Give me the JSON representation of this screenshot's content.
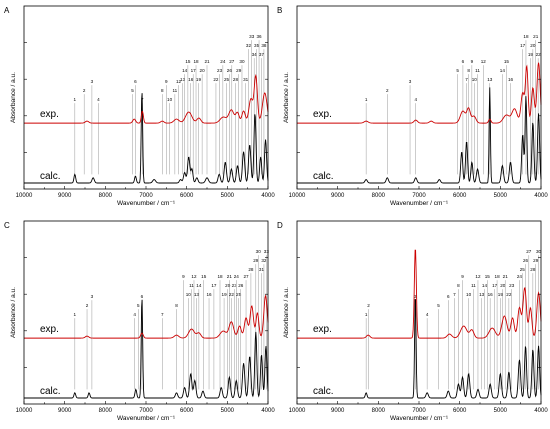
{
  "chart_data": [
    {
      "type": "line",
      "panel": "A",
      "xlabel": "Wavenumber / cm⁻¹",
      "ylabel": "Absorbance / a.u.",
      "xlim": [
        10000,
        4000
      ],
      "x_ticks": [
        "10000",
        "9000",
        "8000",
        "7000",
        "6000",
        "5000",
        "4000"
      ],
      "series": [
        {
          "name": "exp."
        },
        {
          "name": "calc."
        }
      ],
      "modes": [
        {
          "label": "1",
          "x": 8750
        },
        {
          "label": "2",
          "x": 8520
        },
        {
          "label": "3",
          "x": 8330
        },
        {
          "label": "4",
          "x": 8170
        },
        {
          "label": "5",
          "x": 7330
        },
        {
          "label": "6",
          "x": 7260
        },
        {
          "label": "7",
          "x": 7090
        },
        {
          "label": "8",
          "x": 6600
        },
        {
          "label": "9",
          "x": 6500
        },
        {
          "label": "10",
          "x": 6420
        },
        {
          "label": "11",
          "x": 6290
        },
        {
          "label": "12",
          "x": 6200
        },
        {
          "label": "13",
          "x": 6100
        },
        {
          "label": "14",
          "x": 6050
        },
        {
          "label": "15",
          "x": 5970
        },
        {
          "label": "16",
          "x": 5900
        },
        {
          "label": "17",
          "x": 5840
        },
        {
          "label": "18",
          "x": 5770
        },
        {
          "label": "19",
          "x": 5710
        },
        {
          "label": "20",
          "x": 5620
        },
        {
          "label": "21",
          "x": 5500
        },
        {
          "label": "22",
          "x": 5280
        },
        {
          "label": "23",
          "x": 5190
        },
        {
          "label": "24",
          "x": 5110
        },
        {
          "label": "25",
          "x": 5020
        },
        {
          "label": "26",
          "x": 4950
        },
        {
          "label": "27",
          "x": 4890
        },
        {
          "label": "28",
          "x": 4800
        },
        {
          "label": "29",
          "x": 4720
        },
        {
          "label": "30",
          "x": 4640
        },
        {
          "label": "31",
          "x": 4550
        },
        {
          "label": "32",
          "x": 4480
        },
        {
          "label": "33",
          "x": 4400
        },
        {
          "label": "34",
          "x": 4340
        },
        {
          "label": "35",
          "x": 4280
        },
        {
          "label": "36",
          "x": 4220
        },
        {
          "label": "37",
          "x": 4160
        },
        {
          "label": "38",
          "x": 4100
        }
      ],
      "exp_peaks": [
        {
          "x": 8450,
          "h": 0.02,
          "w": 60
        },
        {
          "x": 7290,
          "h": 0.04,
          "w": 50
        },
        {
          "x": 7090,
          "h": 0.12,
          "w": 35
        },
        {
          "x": 6600,
          "h": 0.02,
          "w": 60
        },
        {
          "x": 6250,
          "h": 0.04,
          "w": 90
        },
        {
          "x": 5950,
          "h": 0.11,
          "w": 110
        },
        {
          "x": 5700,
          "h": 0.05,
          "w": 70
        },
        {
          "x": 5100,
          "h": 0.06,
          "w": 110
        },
        {
          "x": 4900,
          "h": 0.13,
          "w": 90
        },
        {
          "x": 4750,
          "h": 0.1,
          "w": 60
        },
        {
          "x": 4600,
          "h": 0.12,
          "w": 60
        },
        {
          "x": 4420,
          "h": 0.24,
          "w": 70
        },
        {
          "x": 4300,
          "h": 0.46,
          "w": 55
        },
        {
          "x": 4080,
          "h": 0.3,
          "w": 80
        }
      ],
      "calc_peaks": [
        {
          "x": 8750,
          "h": 0.05,
          "w": 30
        },
        {
          "x": 8300,
          "h": 0.03,
          "w": 40
        },
        {
          "x": 7260,
          "h": 0.04,
          "w": 30
        },
        {
          "x": 7100,
          "h": 0.53,
          "w": 25
        },
        {
          "x": 6800,
          "h": 0.02,
          "w": 50
        },
        {
          "x": 6150,
          "h": 0.02,
          "w": 40
        },
        {
          "x": 6050,
          "h": 0.06,
          "w": 40
        },
        {
          "x": 5950,
          "h": 0.15,
          "w": 40
        },
        {
          "x": 5870,
          "h": 0.08,
          "w": 35
        },
        {
          "x": 5750,
          "h": 0.03,
          "w": 40
        },
        {
          "x": 5500,
          "h": 0.03,
          "w": 50
        },
        {
          "x": 5200,
          "h": 0.05,
          "w": 40
        },
        {
          "x": 5050,
          "h": 0.12,
          "w": 40
        },
        {
          "x": 4900,
          "h": 0.08,
          "w": 40
        },
        {
          "x": 4750,
          "h": 0.1,
          "w": 40
        },
        {
          "x": 4600,
          "h": 0.18,
          "w": 40
        },
        {
          "x": 4450,
          "h": 0.22,
          "w": 40
        },
        {
          "x": 4320,
          "h": 0.4,
          "w": 35
        },
        {
          "x": 4180,
          "h": 0.15,
          "w": 35
        },
        {
          "x": 4060,
          "h": 0.25,
          "w": 35
        }
      ]
    },
    {
      "type": "line",
      "panel": "B",
      "xlabel": "Wavenumber / cm⁻¹",
      "ylabel": "Absorbance / a.u.",
      "xlim": [
        10000,
        4000
      ],
      "x_ticks": [
        "10000",
        "9000",
        "8000",
        "7000",
        "6000",
        "5000",
        "4000"
      ],
      "series": [
        {
          "name": "exp."
        },
        {
          "name": "calc."
        }
      ],
      "modes": [
        {
          "label": "1",
          "x": 8300
        },
        {
          "label": "2",
          "x": 7780
        },
        {
          "label": "3",
          "x": 7220
        },
        {
          "label": "4",
          "x": 7080
        },
        {
          "label": "5",
          "x": 6050
        },
        {
          "label": "6",
          "x": 5920
        },
        {
          "label": "7",
          "x": 5830
        },
        {
          "label": "8",
          "x": 5780
        },
        {
          "label": "9",
          "x": 5700
        },
        {
          "label": "10",
          "x": 5640
        },
        {
          "label": "11",
          "x": 5560
        },
        {
          "label": "12",
          "x": 5420
        },
        {
          "label": "13",
          "x": 5260
        },
        {
          "label": "14",
          "x": 4950
        },
        {
          "label": "15",
          "x": 4850
        },
        {
          "label": "16",
          "x": 4750
        },
        {
          "label": "17",
          "x": 4450
        },
        {
          "label": "18",
          "x": 4370
        },
        {
          "label": "19",
          "x": 4260
        },
        {
          "label": "20",
          "x": 4200
        },
        {
          "label": "21",
          "x": 4130
        },
        {
          "label": "22",
          "x": 4070
        }
      ],
      "exp_peaks": [
        {
          "x": 8300,
          "h": 0.02,
          "w": 70
        },
        {
          "x": 7080,
          "h": 0.03,
          "w": 60
        },
        {
          "x": 6700,
          "h": 0.02,
          "w": 60
        },
        {
          "x": 5920,
          "h": 0.12,
          "w": 90
        },
        {
          "x": 5780,
          "h": 0.14,
          "w": 60
        },
        {
          "x": 5650,
          "h": 0.07,
          "w": 70
        },
        {
          "x": 5260,
          "h": 0.04,
          "w": 40
        },
        {
          "x": 4850,
          "h": 0.08,
          "w": 110
        },
        {
          "x": 4650,
          "h": 0.14,
          "w": 90
        },
        {
          "x": 4450,
          "h": 0.3,
          "w": 60
        },
        {
          "x": 4350,
          "h": 0.55,
          "w": 45
        },
        {
          "x": 4200,
          "h": 0.35,
          "w": 50
        },
        {
          "x": 4060,
          "h": 0.6,
          "w": 55
        }
      ],
      "calc_peaks": [
        {
          "x": 8300,
          "h": 0.02,
          "w": 40
        },
        {
          "x": 7780,
          "h": 0.03,
          "w": 40
        },
        {
          "x": 7080,
          "h": 0.03,
          "w": 40
        },
        {
          "x": 6500,
          "h": 0.02,
          "w": 40
        },
        {
          "x": 5950,
          "h": 0.18,
          "w": 35
        },
        {
          "x": 5830,
          "h": 0.24,
          "w": 35
        },
        {
          "x": 5700,
          "h": 0.12,
          "w": 35
        },
        {
          "x": 5560,
          "h": 0.08,
          "w": 40
        },
        {
          "x": 5260,
          "h": 0.55,
          "w": 22
        },
        {
          "x": 4950,
          "h": 0.1,
          "w": 40
        },
        {
          "x": 4750,
          "h": 0.12,
          "w": 40
        },
        {
          "x": 4450,
          "h": 0.28,
          "w": 35
        },
        {
          "x": 4370,
          "h": 0.5,
          "w": 30
        },
        {
          "x": 4200,
          "h": 0.35,
          "w": 35
        },
        {
          "x": 4060,
          "h": 0.4,
          "w": 35
        }
      ]
    },
    {
      "type": "line",
      "panel": "C",
      "xlabel": "Wavenumber / cm⁻¹",
      "ylabel": "Absorbance / a.u.",
      "xlim": [
        10000,
        4000
      ],
      "x_ticks": [
        "10000",
        "9000",
        "8000",
        "7000",
        "6000",
        "5000",
        "4000"
      ],
      "series": [
        {
          "name": "exp."
        },
        {
          "name": "calc."
        }
      ],
      "modes": [
        {
          "label": "1",
          "x": 8750
        },
        {
          "label": "2",
          "x": 8450
        },
        {
          "label": "3",
          "x": 8330
        },
        {
          "label": "4",
          "x": 7280
        },
        {
          "label": "5",
          "x": 7190
        },
        {
          "label": "6",
          "x": 7100
        },
        {
          "label": "7",
          "x": 6600
        },
        {
          "label": "8",
          "x": 6250
        },
        {
          "label": "9",
          "x": 6080
        },
        {
          "label": "10",
          "x": 5960
        },
        {
          "label": "11",
          "x": 5880
        },
        {
          "label": "12",
          "x": 5820
        },
        {
          "label": "13",
          "x": 5760
        },
        {
          "label": "14",
          "x": 5700
        },
        {
          "label": "15",
          "x": 5580
        },
        {
          "label": "16",
          "x": 5450
        },
        {
          "label": "17",
          "x": 5330
        },
        {
          "label": "18",
          "x": 5180
        },
        {
          "label": "19",
          "x": 5080
        },
        {
          "label": "20",
          "x": 4990
        },
        {
          "label": "21",
          "x": 4950
        },
        {
          "label": "22",
          "x": 4900
        },
        {
          "label": "23",
          "x": 4830
        },
        {
          "label": "24",
          "x": 4780
        },
        {
          "label": "25",
          "x": 4720
        },
        {
          "label": "26",
          "x": 4670
        },
        {
          "label": "27",
          "x": 4540
        },
        {
          "label": "28",
          "x": 4420
        },
        {
          "label": "29",
          "x": 4300
        },
        {
          "label": "30",
          "x": 4240
        },
        {
          "label": "31",
          "x": 4160
        },
        {
          "label": "32",
          "x": 4100
        },
        {
          "label": "33",
          "x": 4040
        }
      ],
      "exp_peaks": [
        {
          "x": 8450,
          "h": 0.02,
          "w": 60
        },
        {
          "x": 7100,
          "h": 0.05,
          "w": 45
        },
        {
          "x": 6250,
          "h": 0.03,
          "w": 80
        },
        {
          "x": 5880,
          "h": 0.09,
          "w": 100
        },
        {
          "x": 5700,
          "h": 0.05,
          "w": 70
        },
        {
          "x": 5100,
          "h": 0.07,
          "w": 110
        },
        {
          "x": 4900,
          "h": 0.16,
          "w": 80
        },
        {
          "x": 4700,
          "h": 0.12,
          "w": 60
        },
        {
          "x": 4540,
          "h": 0.2,
          "w": 60
        },
        {
          "x": 4400,
          "h": 0.32,
          "w": 60
        },
        {
          "x": 4260,
          "h": 0.25,
          "w": 50
        },
        {
          "x": 4060,
          "h": 0.42,
          "w": 60
        }
      ],
      "calc_peaks": [
        {
          "x": 8750,
          "h": 0.03,
          "w": 30
        },
        {
          "x": 8400,
          "h": 0.03,
          "w": 30
        },
        {
          "x": 7250,
          "h": 0.05,
          "w": 30
        },
        {
          "x": 7100,
          "h": 0.58,
          "w": 25
        },
        {
          "x": 6250,
          "h": 0.03,
          "w": 40
        },
        {
          "x": 6050,
          "h": 0.06,
          "w": 40
        },
        {
          "x": 5900,
          "h": 0.14,
          "w": 40
        },
        {
          "x": 5800,
          "h": 0.1,
          "w": 40
        },
        {
          "x": 5600,
          "h": 0.04,
          "w": 40
        },
        {
          "x": 5150,
          "h": 0.06,
          "w": 40
        },
        {
          "x": 4950,
          "h": 0.12,
          "w": 40
        },
        {
          "x": 4780,
          "h": 0.1,
          "w": 40
        },
        {
          "x": 4600,
          "h": 0.2,
          "w": 40
        },
        {
          "x": 4450,
          "h": 0.24,
          "w": 40
        },
        {
          "x": 4300,
          "h": 0.38,
          "w": 35
        },
        {
          "x": 4160,
          "h": 0.25,
          "w": 35
        },
        {
          "x": 4050,
          "h": 0.3,
          "w": 35
        }
      ]
    },
    {
      "type": "line",
      "panel": "D",
      "xlabel": "Wavenumber / cm⁻¹",
      "ylabel": "Absorbance / a.u.",
      "xlim": [
        10000,
        4000
      ],
      "x_ticks": [
        "10000",
        "9000",
        "8000",
        "7000",
        "6000",
        "5000",
        "4000"
      ],
      "series": [
        {
          "name": "exp."
        },
        {
          "name": "calc."
        }
      ],
      "modes": [
        {
          "label": "1",
          "x": 8300
        },
        {
          "label": "2",
          "x": 8240
        },
        {
          "label": "3",
          "x": 7090
        },
        {
          "label": "4",
          "x": 6800
        },
        {
          "label": "5",
          "x": 6520
        },
        {
          "label": "6",
          "x": 6280
        },
        {
          "label": "7",
          "x": 6130
        },
        {
          "label": "8",
          "x": 6030
        },
        {
          "label": "9",
          "x": 5930
        },
        {
          "label": "10",
          "x": 5780
        },
        {
          "label": "11",
          "x": 5660
        },
        {
          "label": "12",
          "x": 5550
        },
        {
          "label": "13",
          "x": 5460
        },
        {
          "label": "14",
          "x": 5390
        },
        {
          "label": "15",
          "x": 5320
        },
        {
          "label": "16",
          "x": 5250
        },
        {
          "label": "17",
          "x": 5140
        },
        {
          "label": "18",
          "x": 5080
        },
        {
          "label": "19",
          "x": 5000
        },
        {
          "label": "20",
          "x": 4940
        },
        {
          "label": "21",
          "x": 4880
        },
        {
          "label": "22",
          "x": 4790
        },
        {
          "label": "23",
          "x": 4720
        },
        {
          "label": "24",
          "x": 4530
        },
        {
          "label": "25",
          "x": 4460
        },
        {
          "label": "26",
          "x": 4380
        },
        {
          "label": "27",
          "x": 4300
        },
        {
          "label": "28",
          "x": 4200
        },
        {
          "label": "29",
          "x": 4130
        },
        {
          "label": "30",
          "x": 4060
        }
      ],
      "exp_peaks": [
        {
          "x": 8250,
          "h": 0.03,
          "w": 60
        },
        {
          "x": 7090,
          "h": 0.9,
          "w": 35
        },
        {
          "x": 6250,
          "h": 0.04,
          "w": 80
        },
        {
          "x": 5900,
          "h": 0.12,
          "w": 110
        },
        {
          "x": 5700,
          "h": 0.08,
          "w": 70
        },
        {
          "x": 5200,
          "h": 0.1,
          "w": 110
        },
        {
          "x": 4900,
          "h": 0.22,
          "w": 90
        },
        {
          "x": 4700,
          "h": 0.2,
          "w": 60
        },
        {
          "x": 4530,
          "h": 0.3,
          "w": 60
        },
        {
          "x": 4400,
          "h": 0.5,
          "w": 60
        },
        {
          "x": 4260,
          "h": 0.3,
          "w": 50
        },
        {
          "x": 4060,
          "h": 0.45,
          "w": 60
        }
      ],
      "calc_peaks": [
        {
          "x": 8300,
          "h": 0.03,
          "w": 30
        },
        {
          "x": 7090,
          "h": 0.6,
          "w": 25
        },
        {
          "x": 6800,
          "h": 0.03,
          "w": 40
        },
        {
          "x": 6280,
          "h": 0.04,
          "w": 40
        },
        {
          "x": 6030,
          "h": 0.08,
          "w": 40
        },
        {
          "x": 5930,
          "h": 0.12,
          "w": 40
        },
        {
          "x": 5780,
          "h": 0.14,
          "w": 40
        },
        {
          "x": 5550,
          "h": 0.05,
          "w": 40
        },
        {
          "x": 5250,
          "h": 0.08,
          "w": 40
        },
        {
          "x": 5000,
          "h": 0.14,
          "w": 40
        },
        {
          "x": 4790,
          "h": 0.15,
          "w": 40
        },
        {
          "x": 4530,
          "h": 0.22,
          "w": 40
        },
        {
          "x": 4380,
          "h": 0.3,
          "w": 35
        },
        {
          "x": 4200,
          "h": 0.28,
          "w": 35
        },
        {
          "x": 4060,
          "h": 0.3,
          "w": 35
        }
      ]
    }
  ]
}
